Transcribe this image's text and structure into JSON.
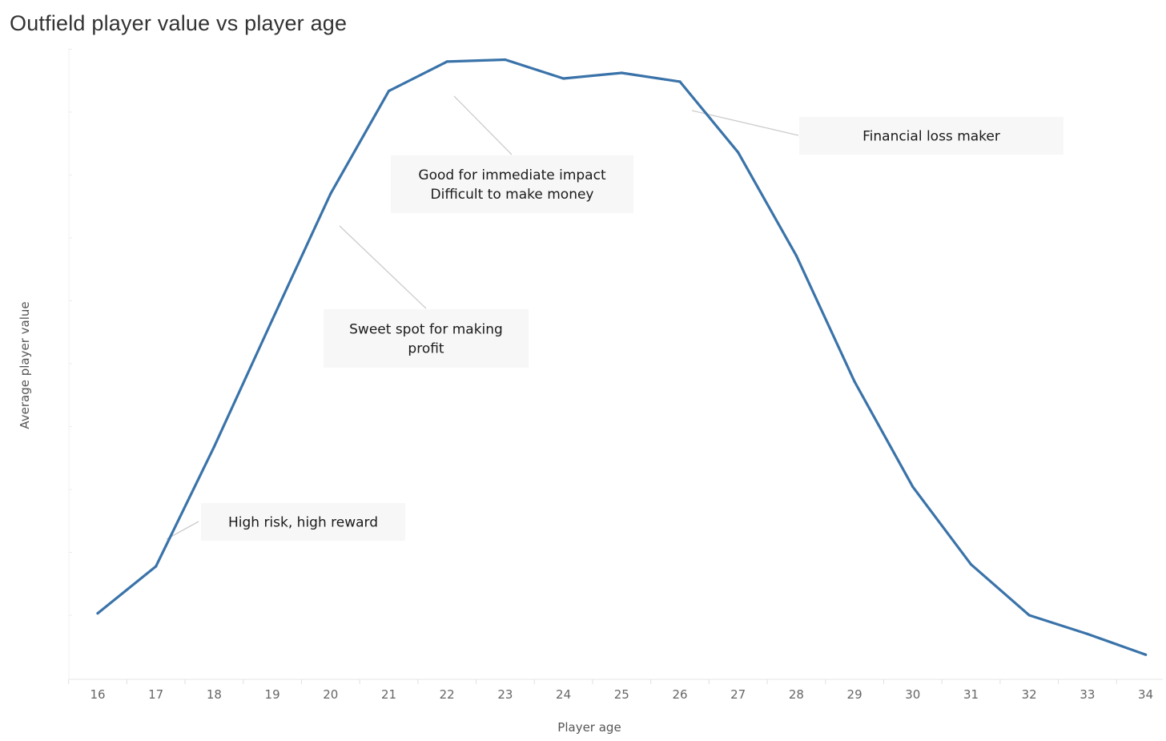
{
  "chart_data": {
    "type": "line",
    "title": "Outfield player value vs player age",
    "xlabel": "Player age",
    "ylabel": "Average player value",
    "x": [
      16,
      17,
      18,
      19,
      20,
      21,
      22,
      23,
      24,
      25,
      26,
      27,
      28,
      29,
      30,
      31,
      32,
      33,
      34
    ],
    "series": [
      {
        "values": [
          9.1,
          16.6,
          35.7,
          56.0,
          76.1,
          92.5,
          97.2,
          97.5,
          94.5,
          95.4,
          94.0,
          82.7,
          66.2,
          46.1,
          29.3,
          16.9,
          8.8,
          5.8,
          2.5
        ]
      }
    ],
    "ylim": [
      -0.8,
      100
    ],
    "grid": false,
    "line_color": "#3a73a9",
    "annotations": [
      {
        "id": "high-risk",
        "lines": [
          "High risk, high reward"
        ],
        "x": 17
      },
      {
        "id": "sweet-spot",
        "lines": [
          "Sweet spot for making",
          "profit"
        ],
        "x": 20
      },
      {
        "id": "immediate-impact",
        "lines": [
          "Good for immediate impact",
          "Difficult to make money"
        ],
        "x": 22
      },
      {
        "id": "loss-maker",
        "lines": [
          "Financial loss maker"
        ],
        "x": 26
      }
    ]
  }
}
